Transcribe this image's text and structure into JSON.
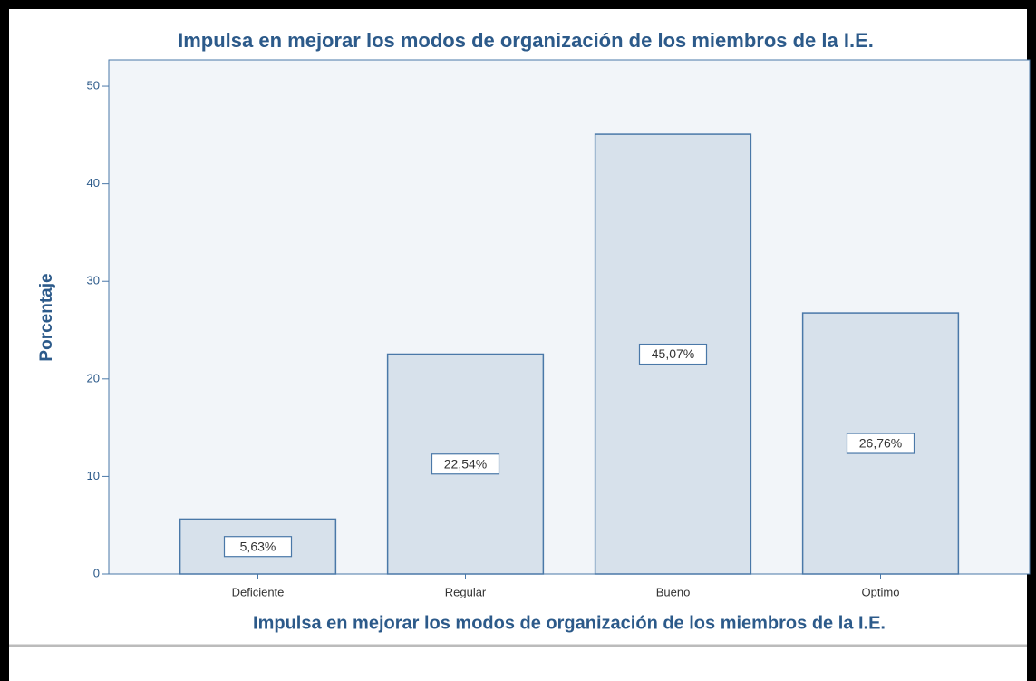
{
  "chart_data": {
    "type": "bar",
    "title": "Impulsa en mejorar los modos de organización de los miembros de la I.E.",
    "x_label": "Impulsa en mejorar los modos de organización de los miembros de la I.E.",
    "y_label": "Porcentaje",
    "categories": [
      "Deficiente",
      "Regular",
      "Bueno",
      "Optimo"
    ],
    "values": [
      5.63,
      22.54,
      45.07,
      26.76
    ],
    "value_labels": [
      "5,63%",
      "22,54%",
      "45,07%",
      "26,76%"
    ],
    "color": "#d7e1eb",
    "ylim": [
      0,
      52.7
    ],
    "yticks": [
      0,
      10,
      20,
      30,
      40,
      50
    ],
    "grid": false
  }
}
